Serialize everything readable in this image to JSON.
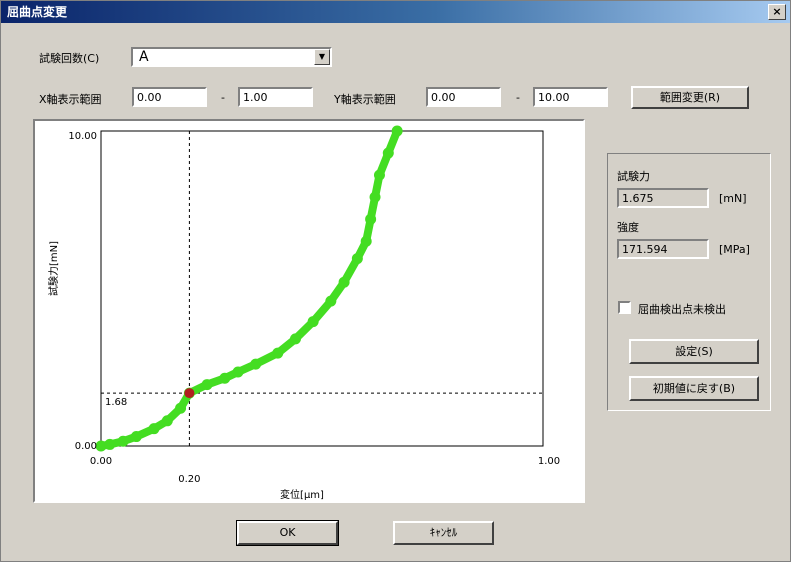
{
  "dialog": {
    "title": "屈曲点変更",
    "close_label": "×"
  },
  "top": {
    "test_no_label": "試験回数(C)",
    "test_no_value": "A",
    "x_range_label": "X軸表示範囲",
    "x_min": "0.00",
    "x_max": "1.00",
    "y_range_label": "Y軸表示範囲",
    "y_min": "0.00",
    "y_max": "10.00",
    "range_sep": "-",
    "apply_button": "範囲変更(R)"
  },
  "side": {
    "force_label": "試験力",
    "force_value": "1.675",
    "force_unit": "[mN]",
    "hardness_label": "強度",
    "hardness_value": "171.594",
    "hardness_unit": "[MPa]",
    "auto_detect_label": "屈曲検出点未検出",
    "auto_detect_checked": false,
    "set_button": "設定(S)",
    "reset_button": "初期値に戻す(B)"
  },
  "footer": {
    "ok_label": "OK",
    "cancel_label": "ｷｬﾝｾﾙ"
  },
  "colors": {
    "curve": "#44dd22",
    "marker": "#b02020",
    "title_bar": "#0a246a"
  },
  "chart_data": {
    "type": "scatter",
    "xlabel": "変位[μm]",
    "ylabel": "試験力[mN]",
    "xlim": [
      0,
      1
    ],
    "ylim": [
      0,
      10
    ],
    "x_tick_labels": [
      "0.00",
      "1.00"
    ],
    "y_tick_labels": [
      "0.00",
      "10.00"
    ],
    "selected_point": {
      "x": 0.2,
      "y": 1.68,
      "x_label": "0.20",
      "y_label": "1.68"
    },
    "series": [
      {
        "points": [
          [
            0.0,
            0.0
          ],
          [
            0.02,
            0.05
          ],
          [
            0.05,
            0.15
          ],
          [
            0.08,
            0.3
          ],
          [
            0.12,
            0.55
          ],
          [
            0.15,
            0.8
          ],
          [
            0.18,
            1.2
          ],
          [
            0.2,
            1.68
          ],
          [
            0.24,
            1.95
          ],
          [
            0.28,
            2.15
          ],
          [
            0.31,
            2.35
          ],
          [
            0.35,
            2.6
          ],
          [
            0.4,
            2.95
          ],
          [
            0.44,
            3.4
          ],
          [
            0.48,
            3.95
          ],
          [
            0.52,
            4.6
          ],
          [
            0.55,
            5.2
          ],
          [
            0.58,
            5.95
          ],
          [
            0.6,
            6.5
          ],
          [
            0.61,
            7.2
          ],
          [
            0.62,
            7.9
          ],
          [
            0.63,
            8.6
          ],
          [
            0.65,
            9.3
          ],
          [
            0.67,
            10.0
          ]
        ]
      }
    ]
  }
}
